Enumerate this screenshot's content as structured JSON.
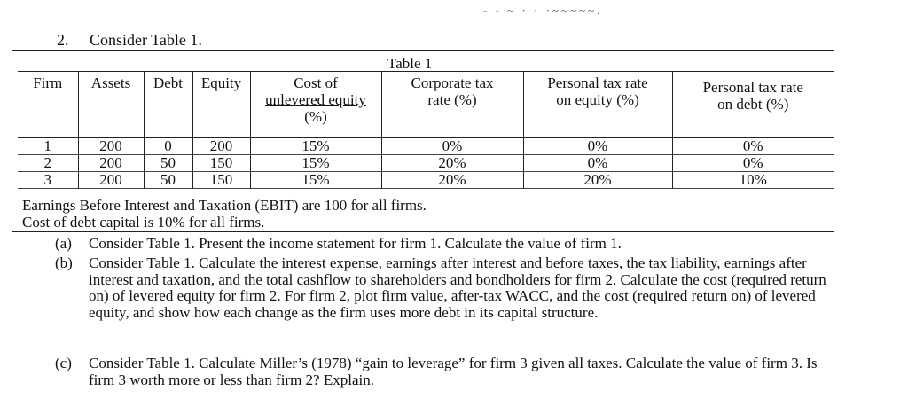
{
  "header_scrawl": "- - ~ · · ·~~~~~.",
  "question": {
    "number": "2.",
    "intro": "Consider Table 1."
  },
  "table": {
    "caption": "Table 1",
    "headers": {
      "firm": "Firm",
      "assets": "Assets",
      "debt": "Debt",
      "equity": "Equity",
      "cost_unlevered_equity": {
        "line1": "Cost of",
        "line2": "unlevered equity",
        "line3": "(%)"
      },
      "corporate_tax": {
        "line1": "Corporate tax",
        "line2": "rate (%)"
      },
      "personal_tax_equity": {
        "line1": "Personal tax rate",
        "line2": "on equity (%)"
      },
      "personal_tax_debt": {
        "line1": "Personal tax rate",
        "line2": "on debt (%)"
      }
    },
    "rows": [
      {
        "firm": "1",
        "assets": "200",
        "debt": "0",
        "equity": "200",
        "cost": "15%",
        "corp_tax": "0%",
        "tax_equity": "0%",
        "tax_debt": "0%"
      },
      {
        "firm": "2",
        "assets": "200",
        "debt": "50",
        "equity": "150",
        "cost": "15%",
        "corp_tax": "20%",
        "tax_equity": "0%",
        "tax_debt": "0%"
      },
      {
        "firm": "3",
        "assets": "200",
        "debt": "50",
        "equity": "150",
        "cost": "15%",
        "corp_tax": "20%",
        "tax_equity": "20%",
        "tax_debt": "10%"
      }
    ]
  },
  "notes": {
    "ebit": "Earnings Before Interest and Taxation (EBIT) are 100 for all firms.",
    "cost_of_debt": "Cost of debt capital is 10% for all firms."
  },
  "parts": {
    "a": {
      "label": "(a)",
      "text": "Consider Table 1. Present the income statement for firm 1. Calculate the value of firm 1."
    },
    "b": {
      "label": "(b)",
      "text": "Consider Table 1. Calculate the interest expense, earnings after interest and before taxes, the tax liability, earnings after interest and taxation, and the total cashflow to shareholders and bondholders for firm 2. Calculate the cost (required return on) of levered equity for firm 2. For firm 2, plot firm value, after-tax WACC, and the cost (required return on) of levered equity, and show how each change as the firm uses more debt in its capital structure."
    },
    "c": {
      "label": "(c)",
      "text": "Consider Table 1.  Calculate Miller’s (1978) “gain to leverage” for firm 3 given all taxes. Calculate the value of firm 3. Is firm 3 worth more or less than firm 2? Explain."
    }
  }
}
